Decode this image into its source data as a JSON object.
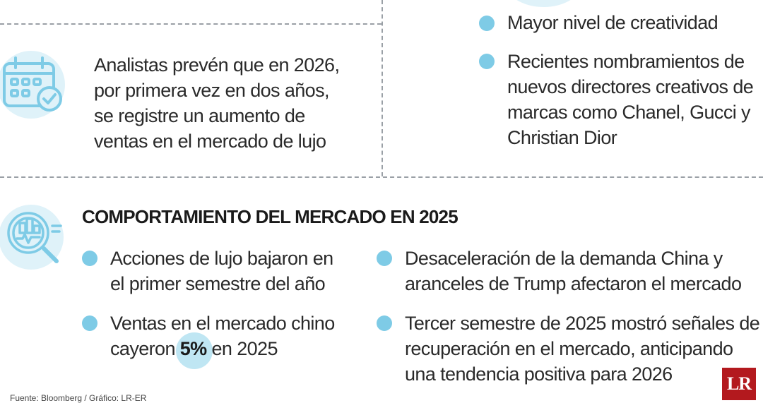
{
  "top_left": {
    "lines": [
      "Analistas prevén que en 2026,",
      "por primera vez en dos años,",
      "se registre un aumento de",
      "ventas en el mercado de lujo"
    ]
  },
  "top_right": {
    "items": [
      {
        "lines": [
          "Mayor nivel de creatividad"
        ]
      },
      {
        "lines": [
          "Recientes nombramientos de",
          "nuevos directores creativos de",
          "marcas como Chanel, Gucci y",
          "Christian Dior"
        ]
      }
    ]
  },
  "section": {
    "title": "COMPORTAMIENTO DEL MERCADO EN 2025",
    "left_items": [
      {
        "lines": [
          "Acciones de lujo bajaron en",
          "el primer semestre del año"
        ]
      },
      {
        "line1": "Ventas en el mercado chino",
        "line2_pre": "cayeron ",
        "highlight": "5%",
        "line2_post": " en 2025"
      }
    ],
    "right_items": [
      {
        "lines": [
          "Desaceleración de la demanda China y",
          "aranceles de Trump afectaron el mercado"
        ]
      },
      {
        "lines": [
          "Tercer semestre de 2025 mostró señales de",
          "recuperación en el mercado, anticipando",
          "una tendencia positiva para 2026"
        ]
      }
    ]
  },
  "source": "Fuente: Bloomberg / Gráfico: LR-ER",
  "logo": "LR",
  "colors": {
    "bullet": "#7ecbe6",
    "icon_bg": "#dff2f9",
    "icon_stroke": "#7ecbe6",
    "logo_bg": "#b3191e"
  }
}
